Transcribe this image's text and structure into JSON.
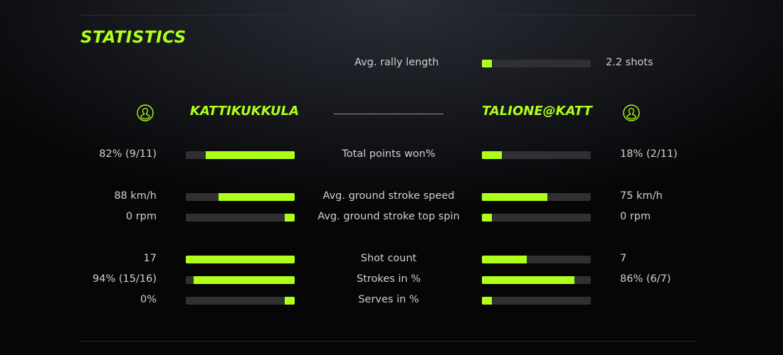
{
  "title": "STATISTICS",
  "accent": "#b0ff1a",
  "rally": {
    "label": "Avg. rally length",
    "value": "2.2 shots",
    "fill": 0.09
  },
  "players": {
    "left": {
      "name": "KATTIKUKKULA",
      "icon": "user-icon"
    },
    "right": {
      "name": "TALIONE@KATT",
      "icon": "user-icon"
    }
  },
  "rows": [
    {
      "label": "Total points won%",
      "left": "82% (9/11)",
      "right": "18% (2/11)",
      "left_fill": 0.82,
      "right_fill": 0.18
    },
    {
      "label": "Avg. ground stroke speed",
      "left": "88 km/h",
      "right": "75 km/h",
      "left_fill": 0.7,
      "right_fill": 0.6
    },
    {
      "label": "Avg. ground stroke top spin",
      "left": "0 rpm",
      "right": "0 rpm",
      "left_fill": 0.09,
      "right_fill": 0.09
    },
    {
      "label": "Shot count",
      "left": "17",
      "right": "7",
      "left_fill": 1.0,
      "right_fill": 0.41
    },
    {
      "label": "Strokes in %",
      "left": "94% (15/16)",
      "right": "86% (6/7)",
      "left_fill": 0.93,
      "right_fill": 0.85
    },
    {
      "label": "Serves in %",
      "left": "0%",
      "right": "",
      "left_fill": 0.09,
      "right_fill": 0.09
    }
  ]
}
